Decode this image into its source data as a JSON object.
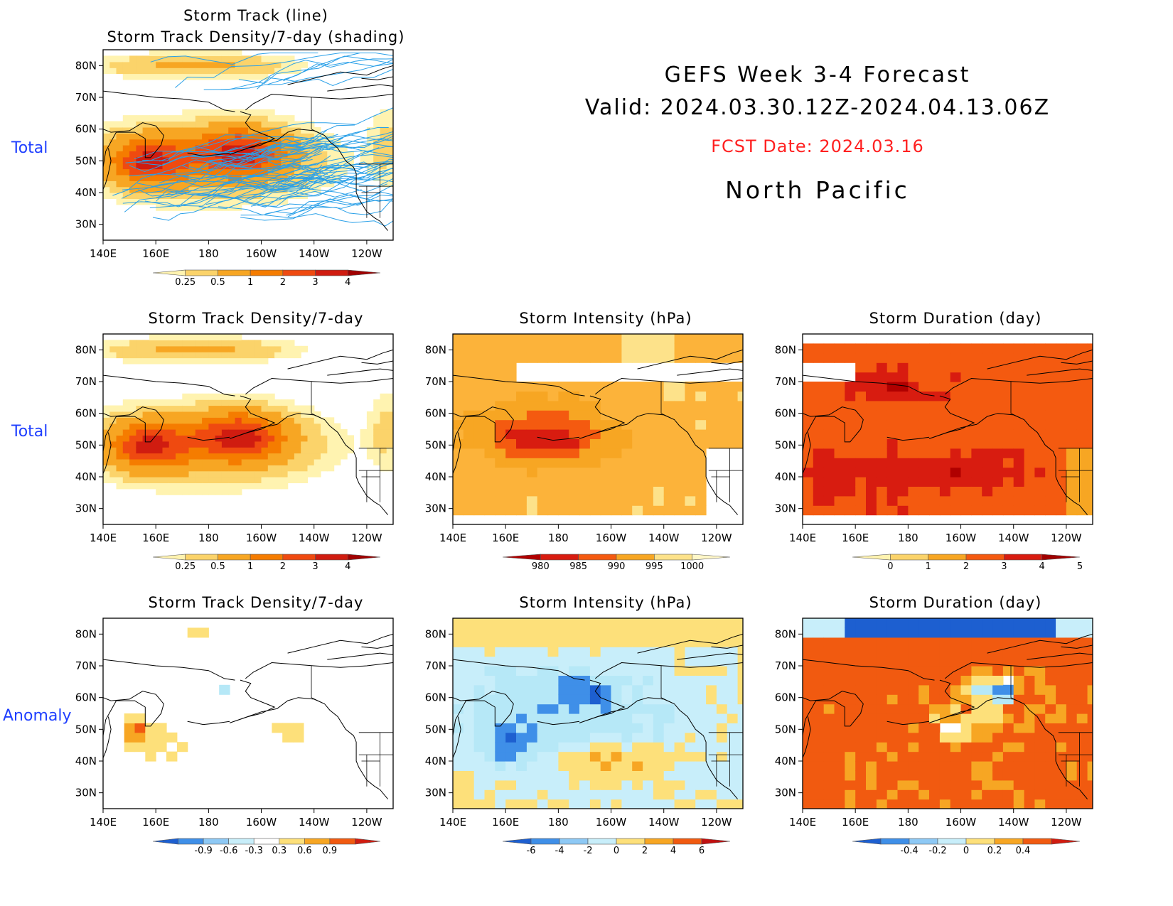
{
  "header": {
    "title": "GEFS Week 3-4 Forecast",
    "valid": "Valid: 2024.03.30.12Z-2024.04.13.06Z",
    "fcst_date": "FCST Date: 2024.03.16",
    "region": "North Pacific"
  },
  "row_labels": [
    "Total",
    "Total",
    "Anomaly"
  ],
  "axes": {
    "lon_labels": [
      "140E",
      "160E",
      "180",
      "160W",
      "140W",
      "120W"
    ],
    "lat_labels": [
      "30N",
      "40N",
      "50N",
      "60N",
      "70N",
      "80N"
    ]
  },
  "panels": [
    {
      "id": "track-total",
      "title_lines": [
        "Storm Track (line)",
        "Storm Track Density/7-day (shading)"
      ],
      "field": "density",
      "tracks": true,
      "colorbar": {
        "labels": [
          "0.25",
          "0.5",
          "1",
          "2",
          "3",
          "4"
        ],
        "colors": [
          "#fff3b0",
          "#fbd36a",
          "#f7a623",
          "#f57c00",
          "#ef4a10",
          "#d01c10",
          "#a00000"
        ]
      }
    },
    {
      "id": "density-total",
      "title_lines": [
        "Storm Track Density/7-day"
      ],
      "field": "density",
      "tracks": false,
      "colorbar": {
        "labels": [
          "0.25",
          "0.5",
          "1",
          "2",
          "3",
          "4"
        ],
        "colors": [
          "#fff3b0",
          "#fbd36a",
          "#f7a623",
          "#f57c00",
          "#ef4a10",
          "#d01c10",
          "#a00000"
        ]
      }
    },
    {
      "id": "intensity-total",
      "title_lines": [
        "Storm Intensity (hPa)"
      ],
      "field": "intensity",
      "tracks": false,
      "colorbar": {
        "labels": [
          "980",
          "985",
          "990",
          "995",
          "1000"
        ],
        "colors": [
          "#b00000",
          "#d81c10",
          "#f45a10",
          "#f7a623",
          "#fde28a",
          "#fff7c8"
        ]
      }
    },
    {
      "id": "duration-total",
      "title_lines": [
        "Storm Duration (day)"
      ],
      "field": "duration",
      "tracks": false,
      "colorbar": {
        "labels": [
          "0",
          "1",
          "2",
          "3",
          "4",
          "5"
        ],
        "colors": [
          "#fff3b0",
          "#fbd36a",
          "#f7a623",
          "#f45a10",
          "#d81c10",
          "#a00000"
        ]
      }
    },
    {
      "id": "density-anomaly",
      "title_lines": [
        "Storm Track Density/7-day"
      ],
      "field": "density_anom",
      "tracks": false,
      "colorbar": {
        "labels": [
          "-0.9",
          "-0.6",
          "-0.3",
          "0.3",
          "0.6",
          "0.9"
        ],
        "colors": [
          "#1d5fd0",
          "#3f8fe8",
          "#8ec9f5",
          "#c8eefa",
          "#ffffff",
          "#fde07a",
          "#f7a623",
          "#f15a10",
          "#d01c10"
        ]
      }
    },
    {
      "id": "intensity-anomaly",
      "title_lines": [
        "Storm Intensity (hPa)"
      ],
      "field": "intensity_anom",
      "tracks": false,
      "colorbar": {
        "labels": [
          "-6",
          "-4",
          "-2",
          "0",
          "2",
          "4",
          "6"
        ],
        "colors": [
          "#1d5fd0",
          "#3f8fe8",
          "#8ec9f5",
          "#c8eefa",
          "#fde07a",
          "#f7a623",
          "#f15a10",
          "#c01010"
        ]
      }
    },
    {
      "id": "duration-anomaly",
      "title_lines": [
        "Storm Duration (day)"
      ],
      "field": "duration_anom",
      "tracks": false,
      "colorbar": {
        "labels": [
          "-0.4",
          "-0.2",
          "0",
          "0.2",
          "0.4"
        ],
        "colors": [
          "#1d5fd0",
          "#3f8fe8",
          "#8ec9f5",
          "#c8eefa",
          "#fde07a",
          "#f7a623",
          "#f15a10",
          "#d01c10"
        ]
      }
    }
  ]
}
